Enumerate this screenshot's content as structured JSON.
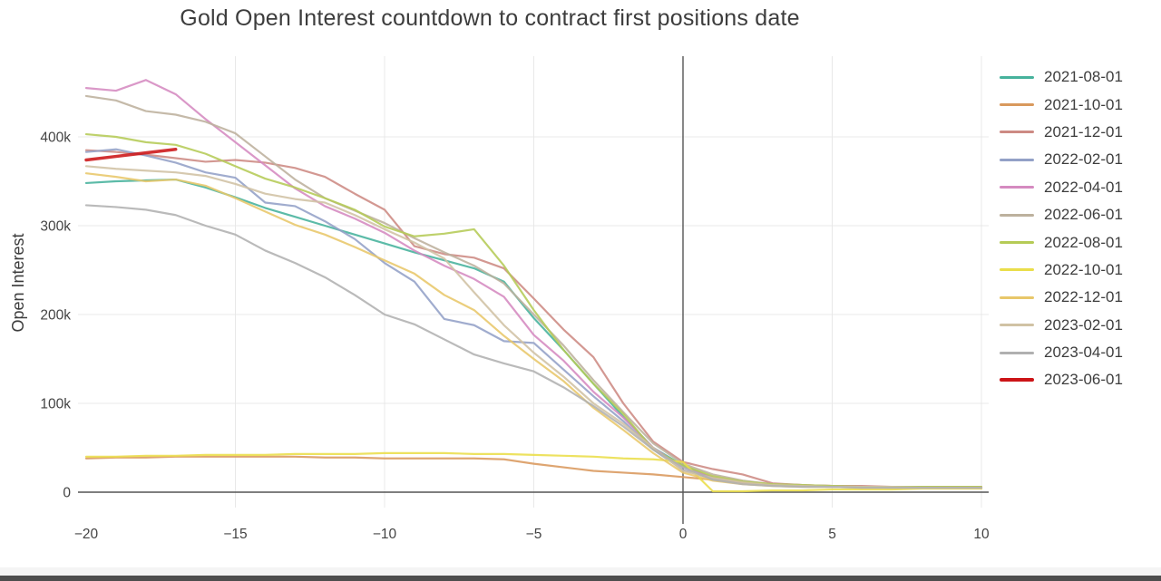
{
  "chart_data": {
    "type": "line",
    "title": "Gold Open Interest countdown to contract first positions date",
    "xlabel": "",
    "ylabel": "Open Interest",
    "xlim": [
      -20.3,
      10.3
    ],
    "ylim": [
      -17000,
      493000
    ],
    "grid": true,
    "legend_position": "right",
    "zeroline_x": 0,
    "zeroline_y": 0,
    "x_ticks": [
      -20,
      -15,
      -10,
      -5,
      0,
      5,
      10
    ],
    "x_tick_labels": [
      "−20",
      "−15",
      "−10",
      "−5",
      "0",
      "5",
      "10"
    ],
    "y_ticks": [
      0,
      100000,
      200000,
      300000,
      400000
    ],
    "y_tick_labels": [
      "0",
      "100k",
      "200k",
      "300k",
      "400k"
    ],
    "x": [
      -20,
      -19,
      -18,
      -17,
      -16,
      -15,
      -14,
      -13,
      -12,
      -11,
      -10,
      -9,
      -8,
      -7,
      -6,
      -5,
      -4,
      -3,
      -2,
      -1,
      0,
      1,
      2,
      3,
      4,
      5,
      6,
      7,
      8,
      9,
      10
    ],
    "series": [
      {
        "name": "2021-08-01",
        "color": "#46b29c",
        "width": 2.2,
        "values": [
          348000,
          350000,
          351000,
          352000,
          343000,
          332000,
          320000,
          310000,
          300000,
          290000,
          280000,
          270000,
          261000,
          252000,
          237000,
          196000,
          160000,
          122000,
          85000,
          50000,
          30000,
          16000,
          11000,
          8000,
          7000,
          6000,
          6000,
          5000,
          5000,
          5000,
          5000
        ]
      },
      {
        "name": "2021-10-01",
        "color": "#d9995d",
        "width": 2.2,
        "values": [
          38000,
          39000,
          39000,
          40000,
          40000,
          40000,
          40000,
          40000,
          39000,
          39000,
          38000,
          38000,
          38000,
          38000,
          37000,
          32000,
          28000,
          24000,
          22000,
          20000,
          17000,
          14000,
          11000,
          9000,
          8000,
          7000,
          6000,
          6000,
          5000,
          5000,
          5000
        ]
      },
      {
        "name": "2021-12-01",
        "color": "#cd8a83",
        "width": 2.2,
        "values": [
          385000,
          383000,
          380000,
          376000,
          372000,
          374000,
          371000,
          365000,
          355000,
          336000,
          318000,
          277000,
          268000,
          264000,
          252000,
          218000,
          183000,
          152000,
          100000,
          57000,
          34000,
          26000,
          20000,
          10000,
          8000,
          7000,
          7000,
          6000,
          6000,
          6000,
          6000
        ]
      },
      {
        "name": "2022-02-01",
        "color": "#93a1c7",
        "width": 2.2,
        "values": [
          383000,
          386000,
          379000,
          371000,
          360000,
          354000,
          326000,
          322000,
          305000,
          285000,
          258000,
          237000,
          195000,
          188000,
          170000,
          168000,
          138000,
          108000,
          80000,
          48000,
          25000,
          15000,
          10000,
          8000,
          7000,
          6000,
          6000,
          5000,
          5000,
          5000,
          5000
        ]
      },
      {
        "name": "2022-04-01",
        "color": "#d58ac0",
        "width": 2.2,
        "values": [
          455000,
          452000,
          464000,
          448000,
          420000,
          394000,
          368000,
          342000,
          322000,
          308000,
          292000,
          272000,
          255000,
          240000,
          220000,
          177000,
          148000,
          113000,
          84000,
          50000,
          28000,
          17000,
          11000,
          8000,
          7000,
          6000,
          6000,
          5000,
          5000,
          5000,
          5000
        ]
      },
      {
        "name": "2022-06-01",
        "color": "#bdb19d",
        "width": 2.2,
        "values": [
          446000,
          441000,
          429000,
          425000,
          417000,
          404000,
          378000,
          352000,
          331000,
          317000,
          303000,
          286000,
          270000,
          255000,
          235000,
          200000,
          165000,
          126000,
          90000,
          55000,
          32000,
          20000,
          13000,
          9000,
          8000,
          7000,
          6000,
          6000,
          6000,
          5000,
          5000
        ]
      },
      {
        "name": "2022-08-01",
        "color": "#b5cb56",
        "width": 2.2,
        "values": [
          403000,
          400000,
          394000,
          391000,
          381000,
          367000,
          353000,
          343000,
          331000,
          318000,
          299000,
          288000,
          291000,
          296000,
          255000,
          205000,
          160000,
          122000,
          88000,
          48000,
          30000,
          18000,
          12000,
          9000,
          8000,
          7000,
          6000,
          6000,
          6000,
          6000,
          6000
        ]
      },
      {
        "name": "2022-10-01",
        "color": "#eade4a",
        "width": 2.2,
        "values": [
          40000,
          40000,
          41000,
          41000,
          42000,
          42000,
          42000,
          43000,
          43000,
          43000,
          44000,
          44000,
          44000,
          43000,
          43000,
          42000,
          41000,
          40000,
          38000,
          37000,
          34000,
          1000,
          1000,
          2000,
          2000,
          3000,
          3000,
          3000,
          4000,
          4000,
          4000
        ]
      },
      {
        "name": "2022-12-01",
        "color": "#e8c76a",
        "width": 2.2,
        "values": [
          359000,
          355000,
          350000,
          352000,
          345000,
          331000,
          316000,
          301000,
          290000,
          276000,
          261000,
          246000,
          222000,
          205000,
          176000,
          150000,
          125000,
          95000,
          70000,
          44000,
          22000,
          13000,
          9000,
          7000,
          6000,
          6000,
          5000,
          5000,
          5000,
          5000,
          5000
        ]
      },
      {
        "name": "2023-02-01",
        "color": "#d0c2a4",
        "width": 2.2,
        "values": [
          367000,
          364000,
          362000,
          360000,
          356000,
          347000,
          336000,
          330000,
          326000,
          312000,
          296000,
          281000,
          263000,
          225000,
          188000,
          157000,
          130000,
          100000,
          77000,
          50000,
          24000,
          16000,
          11000,
          8000,
          7000,
          6000,
          6000,
          6000,
          5000,
          5000,
          5000
        ]
      },
      {
        "name": "2023-04-01",
        "color": "#b0b0b0",
        "width": 2.2,
        "values": [
          323000,
          321000,
          318000,
          312000,
          300000,
          290000,
          272000,
          258000,
          242000,
          222000,
          200000,
          189000,
          172000,
          155000,
          145000,
          136000,
          118000,
          97000,
          74000,
          48000,
          28000,
          14000,
          9000,
          7000,
          6000,
          6000,
          5000,
          5000,
          5000,
          5000,
          5000
        ]
      },
      {
        "name": "2023-06-01",
        "color": "#cc1417",
        "width": 3.5,
        "values": [
          374000,
          378000,
          382000,
          386000,
          null,
          null,
          null,
          null,
          null,
          null,
          null,
          null,
          null,
          null,
          null,
          null,
          null,
          null,
          null,
          null,
          null,
          null,
          null,
          null,
          null,
          null,
          null,
          null,
          null,
          null,
          null
        ]
      }
    ]
  },
  "style": {
    "grid_color": "#e8e8e8",
    "zeroline_color": "#555555",
    "tick_color": "#444444",
    "title_color": "#3d3d3d",
    "bottom_bar_color": "#4d4d4d",
    "bottom_strip_color": "#f4f4f4"
  }
}
